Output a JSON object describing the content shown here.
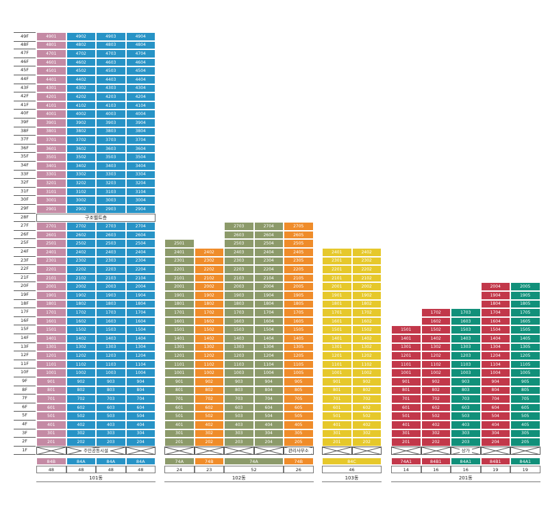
{
  "colors": {
    "pink": "#c48aa4",
    "blue": "#2793c6",
    "olive": "#8c9a6a",
    "orange": "#ef8c2a",
    "yellow": "#e6c82b",
    "red": "#c2384a",
    "green": "#11907a"
  },
  "floors": [
    "49F",
    "48F",
    "47F",
    "46F",
    "45F",
    "44F",
    "43F",
    "42F",
    "41F",
    "40F",
    "39F",
    "38F",
    "37F",
    "36F",
    "35F",
    "34F",
    "33F",
    "32F",
    "31F",
    "30F",
    "29F",
    "28F",
    "27F",
    "26F",
    "25F",
    "24F",
    "23F",
    "22F",
    "21F",
    "20F",
    "19F",
    "18F",
    "17F",
    "16F",
    "15F",
    "14F",
    "13F",
    "12F",
    "11F",
    "10F",
    "9F",
    "8F",
    "7F",
    "6F",
    "5F",
    "4F",
    "3F",
    "2F",
    "1F"
  ],
  "labels": {
    "structural_belt": "구조벨트층",
    "community": "주민공동시설",
    "management": "관리사무소",
    "commercial": "상가"
  },
  "buildings": [
    {
      "name": "101동",
      "columns": [
        {
          "line": 1,
          "top": 49,
          "bottom": 2,
          "color": "pink",
          "type": "84B",
          "count": "48"
        },
        {
          "line": 2,
          "top": 49,
          "bottom": 2,
          "color": "blue",
          "type": "84A",
          "count": "48"
        },
        {
          "line": 3,
          "top": 49,
          "bottom": 2,
          "color": "blue",
          "type": "84A",
          "count": "48"
        },
        {
          "line": 4,
          "top": 49,
          "bottom": 2,
          "color": "blue",
          "type": "84A",
          "count": "48"
        }
      ]
    },
    {
      "name": "102동",
      "columns": [
        {
          "line": 1,
          "top": 25,
          "bottom": 2,
          "color": "olive"
        },
        {
          "line": 2,
          "top": 24,
          "bottom": 2,
          "color": "orange"
        },
        {
          "line": 3,
          "top": 27,
          "bottom": 2,
          "color": "olive"
        },
        {
          "line": 4,
          "top": 27,
          "bottom": 2,
          "color": "olive"
        },
        {
          "line": 5,
          "top": 27,
          "bottom": 2,
          "color": "orange"
        }
      ],
      "types": [
        {
          "label": "74A",
          "count": "24",
          "color": "olive",
          "span": 1
        },
        {
          "label": "74B",
          "count": "23",
          "color": "orange",
          "span": 1
        },
        {
          "label": "74A",
          "count": "52",
          "color": "olive",
          "span": 2
        },
        {
          "label": "74B",
          "count": "26",
          "color": "orange",
          "span": 1
        }
      ]
    },
    {
      "name": "103동",
      "columns": [
        {
          "line": 1,
          "top": 24,
          "bottom": 2,
          "color": "yellow"
        },
        {
          "line": 2,
          "top": 24,
          "bottom": 2,
          "color": "yellow"
        }
      ],
      "types": [
        {
          "label": "84C",
          "count": "46",
          "color": "yellow",
          "span": 2
        }
      ]
    },
    {
      "name": "201동",
      "columns": [
        {
          "line": 1,
          "top": 15,
          "bottom": 2,
          "color": "red"
        },
        {
          "line": 2,
          "top": 17,
          "bottom": 2,
          "color": "red"
        },
        {
          "line": 3,
          "top": 17,
          "bottom": 2,
          "color": "green"
        },
        {
          "line": 4,
          "top": 20,
          "bottom": 2,
          "color": "red"
        },
        {
          "line": 5,
          "top": 20,
          "bottom": 2,
          "color": "green"
        }
      ],
      "types": [
        {
          "label": "74A1",
          "count": "14",
          "color": "red",
          "span": 1
        },
        {
          "label": "84B1",
          "count": "16",
          "color": "red",
          "span": 1
        },
        {
          "label": "84A1",
          "count": "16",
          "color": "green",
          "span": 1
        },
        {
          "label": "84B1",
          "count": "19",
          "color": "red",
          "span": 1
        },
        {
          "label": "84A1",
          "count": "19",
          "color": "green",
          "span": 1
        }
      ]
    }
  ]
}
